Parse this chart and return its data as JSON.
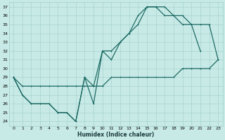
{
  "xlabel": "Humidex (Indice chaleur)",
  "bg_color": "#c8eae6",
  "grid_color": "#9ecfcc",
  "line_color": "#1e6b65",
  "xlim": [
    -0.5,
    23.5
  ],
  "ylim": [
    23.5,
    37.5
  ],
  "xticks": [
    0,
    1,
    2,
    3,
    4,
    5,
    6,
    7,
    8,
    9,
    10,
    11,
    12,
    13,
    14,
    15,
    16,
    17,
    18,
    19,
    20,
    21,
    22,
    23
  ],
  "yticks": [
    24,
    25,
    26,
    27,
    28,
    29,
    30,
    31,
    32,
    33,
    34,
    35,
    36,
    37
  ],
  "line1_x": [
    0,
    1,
    2,
    3,
    4,
    5,
    6,
    7,
    8,
    9,
    10,
    11,
    12,
    13,
    14,
    15,
    16,
    17,
    18,
    19,
    20,
    21,
    22,
    23
  ],
  "line1_y": [
    29,
    27,
    26,
    26,
    26,
    25,
    25,
    24,
    29,
    26,
    32,
    31,
    33,
    34,
    36,
    37,
    37,
    37,
    36,
    36,
    35,
    35,
    35,
    31
  ],
  "line2_x": [
    0,
    1,
    2,
    3,
    4,
    5,
    6,
    7,
    8,
    9,
    10,
    11,
    12,
    13,
    14,
    15,
    16,
    17,
    18,
    19,
    20,
    21,
    22,
    23
  ],
  "line2_y": [
    29,
    27,
    26,
    26,
    26,
    25,
    25,
    24,
    29,
    28,
    32,
    32,
    33,
    34,
    35,
    37,
    37,
    36,
    36,
    35,
    35,
    32,
    null,
    null
  ],
  "line3_x": [
    0,
    1,
    2,
    3,
    4,
    5,
    6,
    7,
    8,
    9,
    10,
    11,
    12,
    13,
    14,
    15,
    16,
    17,
    18,
    19,
    20,
    21,
    22,
    23
  ],
  "line3_y": [
    29,
    28,
    28,
    28,
    28,
    28,
    28,
    28,
    28,
    28,
    28,
    29,
    29,
    29,
    29,
    29,
    29,
    29,
    29,
    30,
    30,
    30,
    30,
    31
  ],
  "marker_size": 2.0,
  "linewidth": 0.9
}
